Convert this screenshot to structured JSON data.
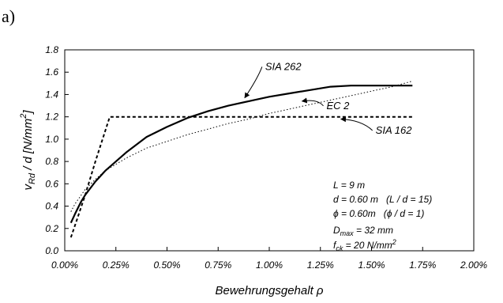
{
  "panel_label": "a)",
  "chart_data": {
    "type": "line",
    "xlabel": "Bewehrungsgehalt ρ",
    "ylabel": {
      "main": "v",
      "sub1": "Rd",
      "mid": " / d  [N/mm",
      "sup": "2",
      "end": "]"
    },
    "xlim": [
      0,
      0.02
    ],
    "ylim": [
      0,
      1.8
    ],
    "x_ticks": [
      0,
      0.0025,
      0.005,
      0.0075,
      0.01,
      0.0125,
      0.015,
      0.0175,
      0.02
    ],
    "x_tick_labels": [
      "0.00%",
      "0.25%",
      "0.50%",
      "0.75%",
      "1.00%",
      "1.25%",
      "1.50%",
      "1.75%",
      "2.00%"
    ],
    "y_ticks": [
      0,
      0.2,
      0.4,
      0.6,
      0.8,
      1.0,
      1.2,
      1.4,
      1.6,
      1.8
    ],
    "y_tick_labels": [
      "0.0",
      "0.2",
      "0.4",
      "0.6",
      "0.8",
      "1.0",
      "1.2",
      "1.4",
      "1.6",
      "1.8"
    ],
    "grid": false,
    "series": [
      {
        "name": "SIA 262",
        "style": "solid",
        "x": [
          0.0003,
          0.0005,
          0.0008,
          0.001,
          0.0015,
          0.002,
          0.0025,
          0.003,
          0.004,
          0.005,
          0.006,
          0.007,
          0.008,
          0.009,
          0.01,
          0.011,
          0.012,
          0.013,
          0.014,
          0.015,
          0.016,
          0.017
        ],
        "y": [
          0.25,
          0.33,
          0.44,
          0.5,
          0.62,
          0.72,
          0.8,
          0.88,
          1.02,
          1.11,
          1.19,
          1.25,
          1.3,
          1.34,
          1.38,
          1.41,
          1.44,
          1.47,
          1.48,
          1.48,
          1.48,
          1.48
        ]
      },
      {
        "name": "EC 2",
        "style": "dotted",
        "x": [
          0.0003,
          0.0005,
          0.001,
          0.0015,
          0.002,
          0.003,
          0.004,
          0.005,
          0.006,
          0.007,
          0.008,
          0.009,
          0.01,
          0.011,
          0.012,
          0.013,
          0.014,
          0.015,
          0.016,
          0.017
        ],
        "y": [
          0.35,
          0.42,
          0.55,
          0.64,
          0.72,
          0.83,
          0.92,
          0.98,
          1.04,
          1.09,
          1.14,
          1.18,
          1.23,
          1.27,
          1.31,
          1.35,
          1.39,
          1.43,
          1.47,
          1.52
        ]
      },
      {
        "name": "SIA 162",
        "style": "dashed",
        "x": [
          0.0003,
          0.0006,
          0.001,
          0.0015,
          0.0022,
          0.005,
          0.01,
          0.015,
          0.017
        ],
        "y": [
          0.12,
          0.28,
          0.5,
          0.8,
          1.2,
          1.2,
          1.2,
          1.2,
          1.2
        ]
      }
    ],
    "annotations": [
      {
        "text": "SIA 262",
        "x": 0.0098,
        "y": 1.62,
        "arrow_to": [
          0.0088,
          1.37
        ]
      },
      {
        "text": "EC 2",
        "x": 0.0128,
        "y": 1.27,
        "arrow_to": [
          0.0116,
          1.34
        ]
      },
      {
        "text": "SIA 162",
        "x": 0.0152,
        "y": 1.05,
        "arrow_to": [
          0.0135,
          1.18
        ]
      }
    ],
    "parameters": [
      {
        "a": "L = 9 m"
      },
      {
        "a": "d = 0.60 m",
        "b": "(L / d = 15)"
      },
      {
        "a": "ϕ = 0.60m",
        "b": "(ϕ / d = 1)"
      },
      {
        "a": "D",
        "a_sub": "max",
        "a_end": " = 32 mm"
      },
      {
        "a": "f",
        "a_sub": "ck",
        "a_end": " = 20 N/mm",
        "a_sup": "2"
      }
    ]
  }
}
